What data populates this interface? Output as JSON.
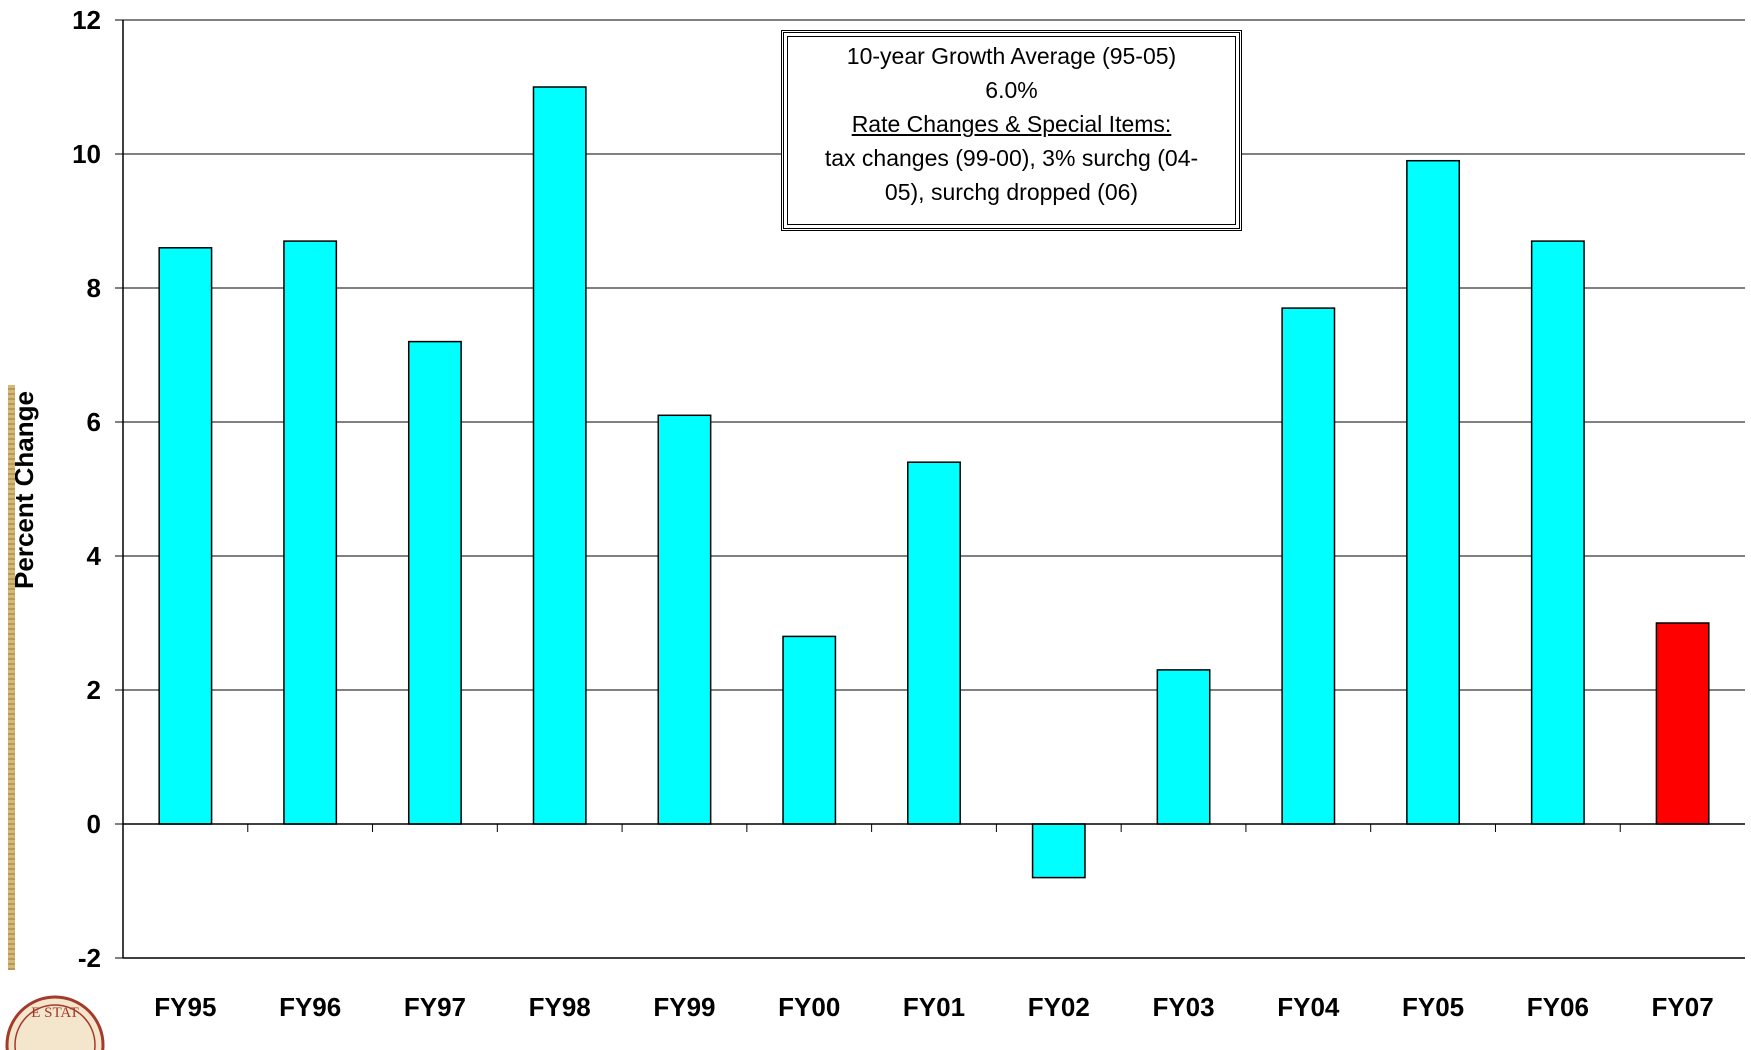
{
  "chart_data": {
    "type": "bar",
    "categories": [
      "FY95",
      "FY96",
      "FY97",
      "FY98",
      "FY99",
      "FY00",
      "FY01",
      "FY02",
      "FY03",
      "FY04",
      "FY05",
      "FY06",
      "FY07"
    ],
    "values": [
      8.6,
      8.7,
      7.2,
      11.0,
      6.1,
      2.8,
      5.4,
      -0.8,
      2.3,
      7.7,
      9.9,
      8.7,
      3.0
    ],
    "bar_colors": [
      "#00ffff",
      "#00ffff",
      "#00ffff",
      "#00ffff",
      "#00ffff",
      "#00ffff",
      "#00ffff",
      "#00ffff",
      "#00ffff",
      "#00ffff",
      "#00ffff",
      "#00ffff",
      "#ff0000"
    ],
    "ylabel": "Percent Change",
    "ylim": [
      -2,
      12
    ],
    "yticks": [
      -2,
      0,
      2,
      4,
      6,
      8,
      10,
      12
    ],
    "grid": true,
    "annotation": {
      "line1": "10-year Growth Average (95-05)",
      "line2": "6.0%",
      "line3": "Rate Changes & Special Items:",
      "line4": "tax changes (99-00), 3% surchg (04-",
      "line5": "05), surchg dropped (06)"
    }
  },
  "seal": {
    "text": "E STAT"
  }
}
